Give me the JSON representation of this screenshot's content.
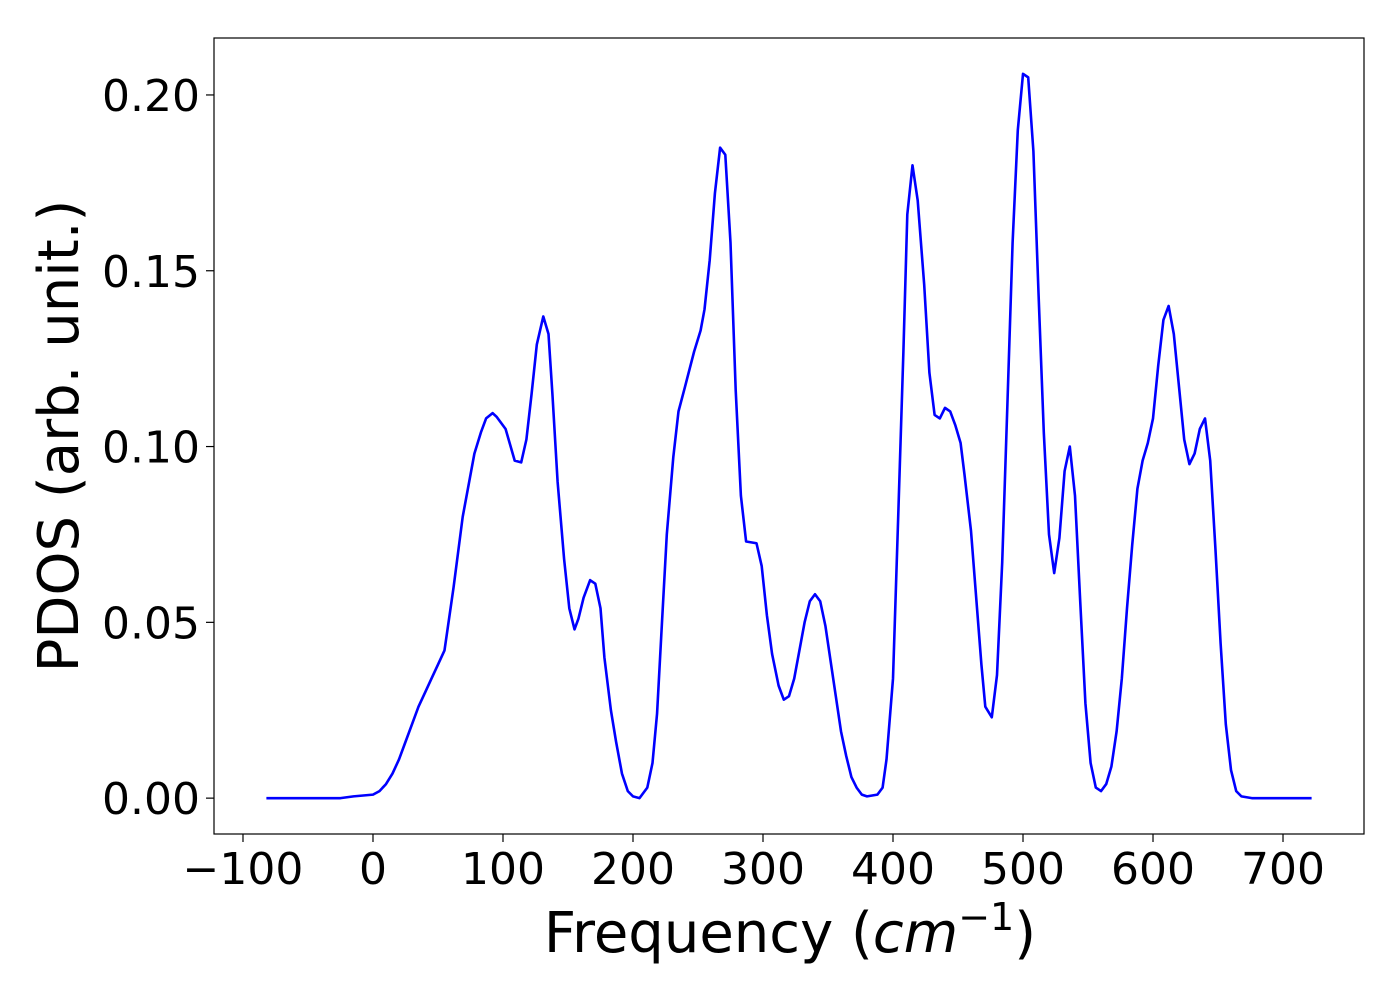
{
  "chart_data": {
    "type": "line",
    "x_label": [
      "Frequency (",
      "cm",
      "−1",
      ")"
    ],
    "y_label": "PDOS (arb. unit.)",
    "x": [
      -82,
      -25,
      -15,
      0,
      5,
      10,
      15,
      20,
      25,
      30,
      35,
      40,
      45,
      50,
      55,
      62,
      69,
      74,
      78,
      83,
      87,
      92,
      95,
      102,
      109,
      114,
      118,
      122,
      126,
      131,
      135,
      138,
      142,
      147,
      151,
      155,
      158,
      162,
      167,
      171,
      175,
      178,
      183,
      187,
      191.5,
      196,
      200,
      205,
      211,
      215,
      218.5,
      222,
      226,
      231,
      235,
      240,
      247,
      252,
      255,
      259,
      263,
      267,
      271,
      275,
      279,
      283,
      287,
      295,
      299,
      303,
      307,
      312,
      316,
      320,
      324,
      328,
      332,
      336,
      340,
      344,
      348,
      352,
      356,
      360,
      364,
      368,
      372,
      376,
      380,
      388,
      392,
      395,
      400,
      404,
      408,
      411,
      415,
      419,
      424,
      428,
      432,
      436,
      440,
      444,
      448,
      452,
      455,
      460,
      464,
      468,
      471,
      476,
      480,
      484,
      488,
      492,
      496,
      500,
      504,
      508,
      512,
      516,
      520,
      524,
      528,
      532,
      536,
      540,
      544,
      548,
      552,
      556,
      560,
      564,
      568,
      572,
      576,
      580,
      584,
      588,
      592,
      596,
      600,
      604,
      608,
      612,
      616,
      620,
      624,
      628,
      632,
      636,
      640,
      644,
      648,
      652,
      656,
      660,
      664,
      668,
      676,
      722
    ],
    "series": [
      {
        "color": "#0000ff",
        "values": [
          0,
          0,
          0.0005,
          0.001,
          0.002,
          0.004,
          0.007,
          0.011,
          0.016,
          0.021,
          0.026,
          0.03,
          0.034,
          0.038,
          0.042,
          0.06,
          0.08,
          0.09,
          0.098,
          0.104,
          0.108,
          0.1095,
          0.1085,
          0.105,
          0.096,
          0.0955,
          0.102,
          0.115,
          0.129,
          0.137,
          0.132,
          0.115,
          0.09,
          0.068,
          0.054,
          0.048,
          0.051,
          0.057,
          0.062,
          0.061,
          0.054,
          0.04,
          0.025,
          0.016,
          0.007,
          0.002,
          0.0005,
          0,
          0.003,
          0.01,
          0.024,
          0.048,
          0.075,
          0.097,
          0.11,
          0.117,
          0.127,
          0.133,
          0.139,
          0.153,
          0.172,
          0.185,
          0.183,
          0.158,
          0.116,
          0.086,
          0.073,
          0.0725,
          0.066,
          0.052,
          0.041,
          0.032,
          0.028,
          0.029,
          0.034,
          0.042,
          0.05,
          0.056,
          0.058,
          0.056,
          0.049,
          0.039,
          0.029,
          0.019,
          0.012,
          0.006,
          0.003,
          0.001,
          0.0005,
          0.001,
          0.003,
          0.011,
          0.034,
          0.08,
          0.127,
          0.166,
          0.18,
          0.17,
          0.146,
          0.121,
          0.109,
          0.108,
          0.111,
          0.11,
          0.106,
          0.101,
          0.092,
          0.076,
          0.057,
          0.038,
          0.026,
          0.023,
          0.035,
          0.067,
          0.112,
          0.158,
          0.19,
          0.206,
          0.205,
          0.184,
          0.143,
          0.104,
          0.075,
          0.064,
          0.074,
          0.093,
          0.1,
          0.086,
          0.056,
          0.027,
          0.01,
          0.003,
          0.002,
          0.004,
          0.009,
          0.019,
          0.034,
          0.054,
          0.072,
          0.088,
          0.096,
          0.101,
          0.108,
          0.123,
          0.136,
          0.14,
          0.132,
          0.117,
          0.102,
          0.095,
          0.098,
          0.105,
          0.108,
          0.096,
          0.071,
          0.044,
          0.021,
          0.008,
          0.002,
          0.0005,
          0,
          0
        ]
      }
    ],
    "xlim": [
      -122.3,
      762.3
    ],
    "ylim": [
      -0.0102,
      0.2162
    ],
    "xticks": [
      {
        "value": -100,
        "label": "−100"
      },
      0,
      100,
      200,
      300,
      400,
      500,
      600,
      700
    ],
    "yticks": [
      {
        "value": 0,
        "label": "0.00"
      },
      {
        "value": 0.05,
        "label": "0.05"
      },
      {
        "value": 0.1,
        "label": "0.10"
      },
      {
        "value": 0.15,
        "label": "0.15"
      },
      {
        "value": 0.2,
        "label": "0.20"
      }
    ],
    "grid": false
  }
}
